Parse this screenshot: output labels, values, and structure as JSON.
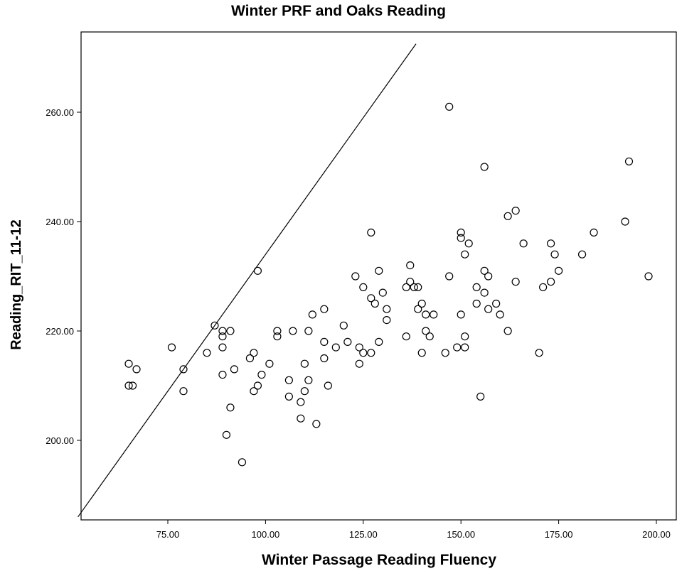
{
  "chart_data": {
    "type": "scatter",
    "title": "Winter PRF and Oaks Reading",
    "xlabel": "Winter Passage Reading Fluency",
    "ylabel": "Reading_RIT_11-12",
    "xlim": [
      52,
      202
    ],
    "ylim": [
      185.5,
      272.5
    ],
    "x_ticks": [
      75,
      100,
      125,
      150,
      175,
      200
    ],
    "x_tick_labels": [
      "75.00",
      "100.00",
      "125.00",
      "150.00",
      "175.00",
      "200.00"
    ],
    "y_ticks": [
      200,
      220,
      240,
      260
    ],
    "y_tick_labels": [
      "200.00",
      "220.00",
      "240.00",
      "260.00"
    ],
    "grid": false,
    "reference_line": {
      "type": "identity",
      "description": "y = x + 134"
    },
    "points": [
      [
        65,
        214
      ],
      [
        65,
        210
      ],
      [
        66,
        210
      ],
      [
        67,
        213
      ],
      [
        76,
        217
      ],
      [
        79,
        213
      ],
      [
        79,
        209
      ],
      [
        85,
        216
      ],
      [
        87,
        221
      ],
      [
        89,
        220
      ],
      [
        89,
        219
      ],
      [
        89,
        217
      ],
      [
        89,
        212
      ],
      [
        91,
        220
      ],
      [
        90,
        201
      ],
      [
        91,
        206
      ],
      [
        92,
        213
      ],
      [
        94,
        196
      ],
      [
        96,
        215
      ],
      [
        97,
        216
      ],
      [
        97,
        209
      ],
      [
        98,
        210
      ],
      [
        98,
        231
      ],
      [
        99,
        212
      ],
      [
        101,
        214
      ],
      [
        103,
        220
      ],
      [
        103,
        219
      ],
      [
        106,
        211
      ],
      [
        106,
        208
      ],
      [
        107,
        220
      ],
      [
        109,
        207
      ],
      [
        109,
        204
      ],
      [
        110,
        214
      ],
      [
        110,
        209
      ],
      [
        111,
        211
      ],
      [
        111,
        220
      ],
      [
        112,
        223
      ],
      [
        113,
        203
      ],
      [
        115,
        224
      ],
      [
        115,
        218
      ],
      [
        115,
        215
      ],
      [
        116,
        210
      ],
      [
        118,
        217
      ],
      [
        120,
        221
      ],
      [
        121,
        218
      ],
      [
        123,
        230
      ],
      [
        124,
        217
      ],
      [
        124,
        214
      ],
      [
        125,
        216
      ],
      [
        125,
        228
      ],
      [
        127,
        216
      ],
      [
        127,
        238
      ],
      [
        127,
        226
      ],
      [
        128,
        225
      ],
      [
        129,
        231
      ],
      [
        129,
        218
      ],
      [
        130,
        227
      ],
      [
        131,
        224
      ],
      [
        131,
        222
      ],
      [
        136,
        228
      ],
      [
        136,
        219
      ],
      [
        137,
        232
      ],
      [
        137,
        229
      ],
      [
        138,
        228
      ],
      [
        139,
        228
      ],
      [
        139,
        224
      ],
      [
        140,
        225
      ],
      [
        140,
        216
      ],
      [
        141,
        223
      ],
      [
        141,
        220
      ],
      [
        142,
        219
      ],
      [
        143,
        223
      ],
      [
        146,
        216
      ],
      [
        147,
        230
      ],
      [
        147,
        261
      ],
      [
        149,
        217
      ],
      [
        150,
        238
      ],
      [
        150,
        237
      ],
      [
        150,
        223
      ],
      [
        151,
        234
      ],
      [
        151,
        219
      ],
      [
        151,
        217
      ],
      [
        152,
        236
      ],
      [
        154,
        228
      ],
      [
        154,
        225
      ],
      [
        155,
        208
      ],
      [
        156,
        231
      ],
      [
        156,
        227
      ],
      [
        156,
        250
      ],
      [
        157,
        230
      ],
      [
        157,
        224
      ],
      [
        159,
        225
      ],
      [
        160,
        223
      ],
      [
        162,
        220
      ],
      [
        162,
        241
      ],
      [
        164,
        242
      ],
      [
        164,
        229
      ],
      [
        166,
        236
      ],
      [
        170,
        216
      ],
      [
        171,
        228
      ],
      [
        173,
        236
      ],
      [
        173,
        229
      ],
      [
        174,
        234
      ],
      [
        175,
        231
      ],
      [
        181,
        234
      ],
      [
        184,
        238
      ],
      [
        192,
        240
      ],
      [
        193,
        251
      ],
      [
        198,
        230
      ]
    ]
  }
}
